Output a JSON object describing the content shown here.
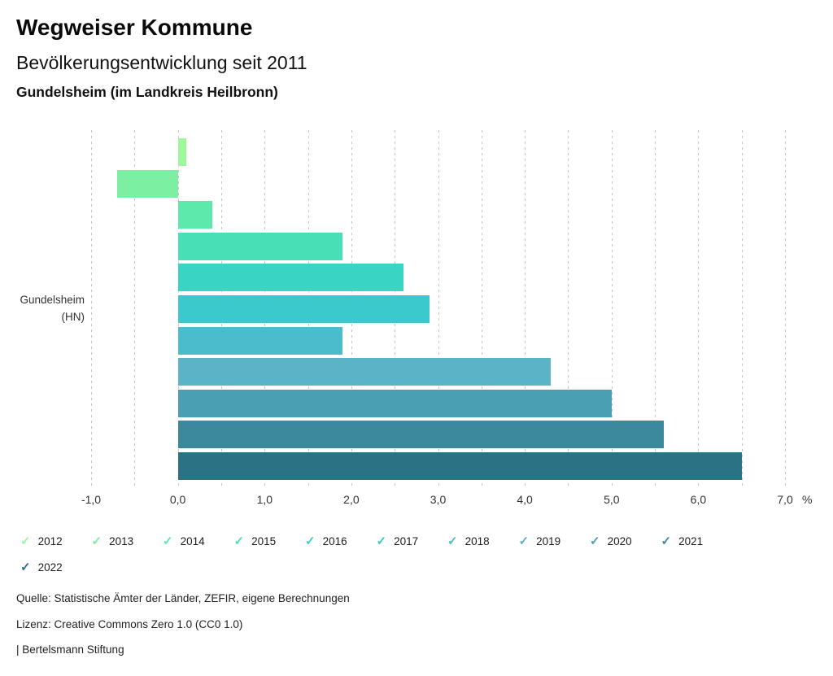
{
  "header": {
    "title": "Wegweiser Kommune",
    "subtitle": "Bevölkerungsentwicklung seit 2011",
    "location": "Gundelsheim (im Landkreis Heilbronn)"
  },
  "chart_data": {
    "type": "bar",
    "orientation": "horizontal",
    "title": "Bevölkerungsentwicklung seit 2011",
    "category": "Gundelsheim (HN)",
    "category_label_line1": "Gundelsheim",
    "category_label_line2": "(HN)",
    "series": [
      {
        "name": "2012",
        "value": 0.1,
        "color": "#9df79b"
      },
      {
        "name": "2013",
        "value": -0.7,
        "color": "#7cefa2"
      },
      {
        "name": "2014",
        "value": 0.4,
        "color": "#5de9ac"
      },
      {
        "name": "2015",
        "value": 1.9,
        "color": "#48dfb6"
      },
      {
        "name": "2016",
        "value": 2.6,
        "color": "#39d4c3"
      },
      {
        "name": "2017",
        "value": 2.9,
        "color": "#3cc9cd"
      },
      {
        "name": "2018",
        "value": 1.9,
        "color": "#4abccb"
      },
      {
        "name": "2019",
        "value": 4.3,
        "color": "#5bb3c7"
      },
      {
        "name": "2020",
        "value": 5.0,
        "color": "#4aa0b2"
      },
      {
        "name": "2021",
        "value": 5.6,
        "color": "#3b8a9c"
      },
      {
        "name": "2022",
        "value": 6.5,
        "color": "#2b7384"
      }
    ],
    "xlim": [
      -1.0,
      7.0
    ],
    "grid_step": 0.5,
    "tick_step": 1.0,
    "tick_labels": [
      "-1,0",
      "0,0",
      "1,0",
      "2,0",
      "3,0",
      "4,0",
      "5,0",
      "6,0",
      "7,0"
    ],
    "unit_label": "%",
    "grid": true,
    "gridline_color": "#c6c6c6",
    "legend_position": "bottom"
  },
  "legend": {
    "check_icon": "✓"
  },
  "footer": {
    "source": "Quelle: Statistische Ämter der Länder, ZEFIR, eigene Berechnungen",
    "license": "Lizenz: Creative Commons Zero 1.0 (CC0 1.0)",
    "attribution": "| Bertelsmann Stiftung"
  }
}
